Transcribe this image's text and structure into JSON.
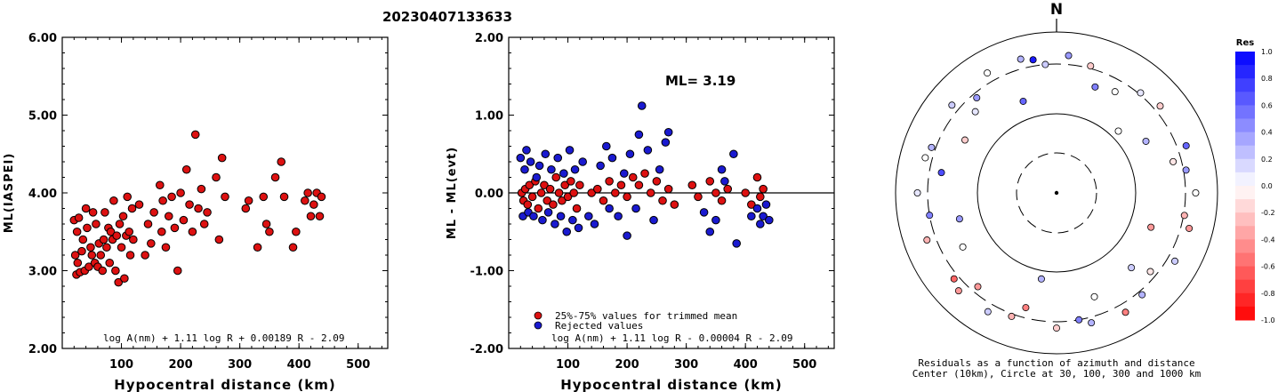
{
  "title": "20230407133633",
  "colors": {
    "accepted": "#dd1111",
    "rejected": "#1a1ad0",
    "stroke": "#000000"
  },
  "chart_data": [
    {
      "type": "scatter",
      "title": "",
      "xlabel": "Hypocentral distance (km)",
      "ylabel": "ML(IASPEI)",
      "xlim": [
        0,
        550
      ],
      "ylim": [
        2.0,
        6.0
      ],
      "xticks": [
        "100",
        "200",
        "300",
        "400",
        "500"
      ],
      "yticks": [
        "2.00",
        "3.00",
        "4.00",
        "5.00",
        "6.00"
      ],
      "formula": "log A(nm) + 1.11 log R + 0.00189 R - 2.09",
      "series": [
        {
          "x": [
            20,
            22,
            24,
            25,
            26,
            28,
            30,
            33,
            35,
            38,
            40,
            42,
            45,
            48,
            50,
            52,
            55,
            57,
            60,
            62,
            65,
            68,
            70,
            72,
            75,
            78,
            80,
            82,
            85,
            87,
            90,
            92,
            95,
            97,
            100,
            103,
            105,
            108,
            110,
            113,
            115,
            118,
            120,
            130,
            140,
            145,
            150,
            155,
            165,
            168,
            170,
            175,
            180,
            185,
            190,
            195,
            200,
            205,
            210,
            215,
            220,
            225,
            230,
            235,
            240,
            245,
            260,
            265,
            270,
            275,
            310,
            315,
            330,
            340,
            345,
            350,
            360,
            370,
            375,
            390,
            395,
            410,
            415,
            420,
            425,
            430,
            435,
            438
          ],
          "y": [
            3.65,
            3.2,
            2.95,
            3.5,
            3.1,
            3.68,
            2.98,
            3.25,
            3.4,
            3.0,
            3.8,
            3.55,
            3.05,
            3.3,
            3.2,
            3.75,
            3.1,
            3.6,
            3.05,
            3.35,
            3.2,
            3.0,
            3.4,
            3.75,
            3.3,
            3.55,
            3.1,
            3.5,
            3.4,
            3.9,
            3.0,
            3.45,
            2.85,
            3.6,
            3.3,
            3.7,
            2.9,
            3.45,
            3.95,
            3.5,
            3.2,
            3.8,
            3.4,
            3.85,
            3.2,
            3.6,
            3.35,
            3.75,
            4.1,
            3.5,
            3.9,
            3.3,
            3.7,
            3.95,
            3.55,
            3.0,
            4.0,
            3.65,
            4.3,
            3.85,
            3.5,
            4.75,
            3.8,
            4.05,
            3.6,
            3.75,
            4.2,
            3.4,
            4.45,
            3.95,
            3.8,
            3.9,
            3.3,
            3.95,
            3.6,
            3.5,
            4.2,
            4.4,
            3.95,
            3.3,
            3.5,
            3.9,
            4.0,
            3.7,
            3.85,
            4.0,
            3.7,
            3.95
          ]
        }
      ]
    },
    {
      "type": "scatter",
      "title": "",
      "xlabel": "Hypocentral distance (km)",
      "ylabel": "ML - ML(evt)",
      "xlim": [
        0,
        550
      ],
      "ylim": [
        -2.0,
        2.0
      ],
      "xticks": [
        "100",
        "200",
        "300",
        "400",
        "500"
      ],
      "yticks": [
        "-2.00",
        "-1.00",
        "0.00",
        "1.00",
        "2.00"
      ],
      "annotation": "ML= 3.19",
      "formula": "log A(nm) + 1.11 log R - 0.00004 R - 2.09",
      "legend": [
        "25%-75% values for trimmed mean",
        "Rejected values"
      ],
      "series": [
        {
          "name": "25%-75% values for trimmed mean",
          "x": [
            22,
            25,
            28,
            32,
            35,
            40,
            45,
            50,
            55,
            60,
            65,
            70,
            75,
            80,
            85,
            90,
            95,
            100,
            105,
            110,
            115,
            120,
            140,
            150,
            160,
            170,
            180,
            190,
            200,
            210,
            220,
            230,
            240,
            250,
            260,
            270,
            280,
            310,
            320,
            340,
            350,
            360,
            370,
            400,
            410,
            420,
            425,
            430
          ],
          "y": [
            0.0,
            -0.1,
            0.05,
            -0.15,
            0.1,
            -0.05,
            0.15,
            -0.2,
            0.0,
            0.1,
            -0.1,
            0.05,
            -0.15,
            0.2,
            0.0,
            -0.1,
            0.1,
            -0.05,
            0.15,
            0.0,
            -0.2,
            0.1,
            0.0,
            0.05,
            -0.1,
            0.15,
            0.0,
            0.1,
            -0.05,
            0.2,
            0.1,
            0.25,
            0.0,
            0.15,
            -0.1,
            0.05,
            -0.15,
            0.1,
            -0.05,
            0.15,
            0.0,
            -0.1,
            0.05,
            0.0,
            -0.15,
            0.2,
            -0.05,
            0.05
          ]
        },
        {
          "name": "Rejected values",
          "x": [
            20,
            24,
            27,
            30,
            33,
            37,
            42,
            47,
            52,
            57,
            62,
            67,
            72,
            78,
            83,
            88,
            93,
            98,
            103,
            108,
            112,
            118,
            125,
            135,
            145,
            155,
            165,
            170,
            175,
            185,
            195,
            200,
            205,
            215,
            220,
            225,
            235,
            245,
            255,
            265,
            270,
            330,
            340,
            350,
            360,
            365,
            380,
            385,
            410,
            420,
            425,
            430,
            435,
            440
          ],
          "y": [
            0.45,
            -0.3,
            0.3,
            0.55,
            -0.25,
            0.4,
            -0.3,
            0.2,
            0.35,
            -0.35,
            0.5,
            -0.25,
            0.3,
            -0.4,
            0.45,
            -0.3,
            0.25,
            -0.5,
            0.55,
            -0.35,
            0.3,
            -0.45,
            0.4,
            -0.3,
            -0.4,
            0.35,
            0.6,
            -0.2,
            0.45,
            -0.3,
            0.25,
            -0.55,
            0.5,
            -0.2,
            0.75,
            1.12,
            0.55,
            -0.35,
            0.3,
            0.65,
            0.78,
            -0.25,
            -0.5,
            -0.35,
            0.3,
            0.15,
            0.5,
            -0.65,
            -0.3,
            -0.2,
            -0.4,
            -0.3,
            -0.15,
            -0.35
          ]
        }
      ]
    }
  ],
  "azimuth_plot": {
    "north_label": "N",
    "caption_line1": "Residuals as a function of azimuth and distance",
    "caption_line2": "Center (10km), Circle at 30, 100, 300 and 1000 km",
    "colorbar_title": "Res",
    "colorbar_ticks": [
      "1.0",
      "0.8",
      "0.6",
      "0.4",
      "0.2",
      "0.0",
      "-0.2",
      "-0.4",
      "-0.6",
      "-0.8",
      "-1.0"
    ],
    "stations": [
      {
        "az": 5,
        "dist": 420,
        "res": 0.4
      },
      {
        "az": 355,
        "dist": 300,
        "res": 0.2
      },
      {
        "az": 20,
        "dist": 210,
        "res": 0.5
      },
      {
        "az": 30,
        "dist": 230,
        "res": 0.0
      },
      {
        "az": 40,
        "dist": 320,
        "res": 0.1
      },
      {
        "az": 50,
        "dist": 380,
        "res": -0.2
      },
      {
        "az": 60,
        "dist": 170,
        "res": 0.3
      },
      {
        "az": 70,
        "dist": 420,
        "res": 0.6
      },
      {
        "az": 80,
        "dist": 330,
        "res": 0.4
      },
      {
        "az": 90,
        "dist": 440,
        "res": 0.0
      },
      {
        "az": 100,
        "dist": 310,
        "res": -0.3
      },
      {
        "az": 110,
        "dist": 160,
        "res": -0.4
      },
      {
        "az": 120,
        "dist": 400,
        "res": 0.2
      },
      {
        "az": 130,
        "dist": 260,
        "res": -0.1
      },
      {
        "az": 140,
        "dist": 350,
        "res": 0.3
      },
      {
        "az": 150,
        "dist": 420,
        "res": -0.5
      },
      {
        "az": 160,
        "dist": 200,
        "res": 0.0
      },
      {
        "az": 170,
        "dist": 300,
        "res": 0.5
      },
      {
        "az": 180,
        "dist": 380,
        "res": -0.2
      },
      {
        "az": 190,
        "dist": 120,
        "res": 0.3
      },
      {
        "az": 200,
        "dist": 330,
        "res": -0.3
      },
      {
        "az": 210,
        "dist": 410,
        "res": 0.2
      },
      {
        "az": 220,
        "dist": 260,
        "res": -0.4
      },
      {
        "az": 230,
        "dist": 360,
        "res": -0.6
      },
      {
        "az": 240,
        "dist": 190,
        "res": 0.0
      },
      {
        "az": 250,
        "dist": 420,
        "res": -0.3
      },
      {
        "az": 260,
        "dist": 300,
        "res": 0.5
      },
      {
        "az": 270,
        "dist": 440,
        "res": 0.1
      },
      {
        "az": 280,
        "dist": 230,
        "res": 0.7
      },
      {
        "az": 290,
        "dist": 350,
        "res": 0.3
      },
      {
        "az": 300,
        "dist": 180,
        "res": -0.2
      },
      {
        "az": 310,
        "dist": 400,
        "res": 0.2
      },
      {
        "az": 320,
        "dist": 270,
        "res": 0.4
      },
      {
        "az": 330,
        "dist": 430,
        "res": 0.0
      },
      {
        "az": 340,
        "dist": 150,
        "res": 0.6
      },
      {
        "az": 350,
        "dist": 380,
        "res": 0.9
      },
      {
        "az": 15,
        "dist": 330,
        "res": -0.2
      },
      {
        "az": 45,
        "dist": 120,
        "res": 0.0
      },
      {
        "az": 75,
        "dist": 250,
        "res": -0.1
      },
      {
        "az": 105,
        "dist": 410,
        "res": -0.4
      },
      {
        "az": 135,
        "dist": 180,
        "res": 0.2
      },
      {
        "az": 165,
        "dist": 370,
        "res": 0.3
      },
      {
        "az": 195,
        "dist": 240,
        "res": -0.5
      },
      {
        "az": 225,
        "dist": 430,
        "res": -0.4
      },
      {
        "az": 255,
        "dist": 160,
        "res": 0.4
      },
      {
        "az": 285,
        "dist": 390,
        "res": 0.0
      },
      {
        "az": 315,
        "dist": 220,
        "res": 0.1
      },
      {
        "az": 345,
        "dist": 430,
        "res": 0.3
      }
    ]
  }
}
